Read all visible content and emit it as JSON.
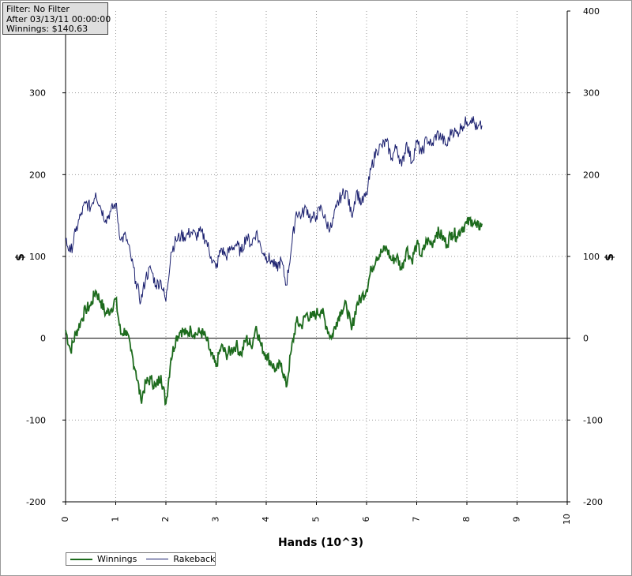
{
  "info": {
    "filter": "Filter: No Filter",
    "after": "After 03/13/11 00:00:00",
    "winnings": "Winnings: $140.63"
  },
  "legend": {
    "winnings_label": "Winnings",
    "rakeback_label": "Rakeback"
  },
  "colors": {
    "winnings": "#1d6b1d",
    "rakeback": "#1a1f6e",
    "grid": "#9a9a9a",
    "zero_line": "#000000"
  },
  "chart_data": {
    "type": "line",
    "xlabel": "Hands (10^3)",
    "ylabel_left": "$",
    "ylabel_right": "$",
    "xlim": [
      0,
      10
    ],
    "ylim": [
      -200,
      400
    ],
    "x_ticks": [
      "0",
      "1",
      "2",
      "3",
      "4",
      "5",
      "6",
      "7",
      "8",
      "9",
      "10"
    ],
    "y_ticks": [
      "-200",
      "-100",
      "0",
      "100",
      "200",
      "300",
      "400"
    ],
    "grid": true,
    "legend_position": "bottom-left",
    "series": [
      {
        "name": "Winnings",
        "x": [
          0,
          0.1,
          0.2,
          0.3,
          0.4,
          0.5,
          0.6,
          0.7,
          0.8,
          0.9,
          1.0,
          1.1,
          1.2,
          1.3,
          1.4,
          1.5,
          1.6,
          1.7,
          1.8,
          1.9,
          2.0,
          2.1,
          2.2,
          2.3,
          2.4,
          2.5,
          2.6,
          2.7,
          2.8,
          2.9,
          3.0,
          3.1,
          3.2,
          3.3,
          3.4,
          3.5,
          3.6,
          3.7,
          3.8,
          3.9,
          4.0,
          4.1,
          4.2,
          4.3,
          4.4,
          4.5,
          4.6,
          4.7,
          4.8,
          4.9,
          5.0,
          5.1,
          5.2,
          5.3,
          5.4,
          5.5,
          5.6,
          5.7,
          5.8,
          5.9,
          6.0,
          6.1,
          6.2,
          6.3,
          6.4,
          6.5,
          6.6,
          6.7,
          6.8,
          6.9,
          7.0,
          7.1,
          7.2,
          7.3,
          7.4,
          7.5,
          7.6,
          7.7,
          7.8,
          7.9,
          8.0,
          8.1,
          8.2,
          8.3
        ],
        "values": [
          10,
          -15,
          5,
          20,
          35,
          40,
          58,
          45,
          30,
          35,
          48,
          5,
          10,
          -15,
          -40,
          -75,
          -55,
          -50,
          -60,
          -45,
          -80,
          -25,
          0,
          10,
          5,
          10,
          5,
          8,
          0,
          -20,
          -35,
          -10,
          -20,
          -15,
          -8,
          -20,
          0,
          -10,
          15,
          -10,
          -20,
          -30,
          -40,
          -30,
          -60,
          -15,
          20,
          15,
          30,
          25,
          30,
          35,
          15,
          0,
          20,
          35,
          40,
          10,
          40,
          50,
          60,
          85,
          100,
          105,
          110,
          95,
          100,
          85,
          110,
          95,
          115,
          100,
          120,
          115,
          130,
          125,
          115,
          130,
          125,
          135,
          140,
          145,
          135,
          140
        ]
      },
      {
        "name": "Rakeback",
        "x": [
          0,
          0.1,
          0.2,
          0.3,
          0.4,
          0.5,
          0.6,
          0.7,
          0.8,
          0.9,
          1.0,
          1.1,
          1.2,
          1.3,
          1.4,
          1.5,
          1.6,
          1.7,
          1.8,
          1.9,
          2.0,
          2.1,
          2.2,
          2.3,
          2.4,
          2.5,
          2.6,
          2.7,
          2.8,
          2.9,
          3.0,
          3.1,
          3.2,
          3.3,
          3.4,
          3.5,
          3.6,
          3.7,
          3.8,
          3.9,
          4.0,
          4.1,
          4.2,
          4.3,
          4.4,
          4.5,
          4.6,
          4.7,
          4.8,
          4.9,
          5.0,
          5.1,
          5.2,
          5.3,
          5.4,
          5.5,
          5.6,
          5.7,
          5.8,
          5.9,
          6.0,
          6.1,
          6.2,
          6.3,
          6.4,
          6.5,
          6.6,
          6.7,
          6.8,
          6.9,
          7.0,
          7.1,
          7.2,
          7.3,
          7.4,
          7.5,
          7.6,
          7.7,
          7.8,
          7.9,
          8.0,
          8.1,
          8.2,
          8.3
        ],
        "values": [
          120,
          105,
          130,
          150,
          165,
          160,
          178,
          160,
          145,
          155,
          165,
          120,
          125,
          100,
          70,
          45,
          75,
          85,
          65,
          70,
          45,
          105,
          120,
          125,
          125,
          130,
          125,
          130,
          120,
          100,
          85,
          110,
          100,
          110,
          115,
          105,
          125,
          115,
          130,
          110,
          100,
          95,
          85,
          95,
          65,
          110,
          155,
          150,
          160,
          145,
          150,
          160,
          140,
          135,
          160,
          175,
          180,
          150,
          180,
          165,
          175,
          210,
          230,
          235,
          240,
          220,
          235,
          210,
          240,
          215,
          240,
          225,
          245,
          235,
          250,
          245,
          235,
          255,
          250,
          260,
          265,
          270,
          255,
          260
        ]
      }
    ]
  }
}
